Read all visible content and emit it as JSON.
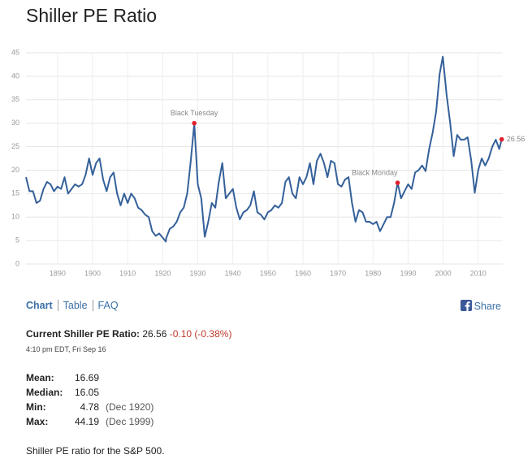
{
  "header": {
    "title": "Shiller PE Ratio"
  },
  "chart_data": {
    "type": "line",
    "x": [
      1881,
      1882,
      1883,
      1884,
      1885,
      1886,
      1887,
      1888,
      1889,
      1890,
      1891,
      1892,
      1893,
      1894,
      1895,
      1896,
      1897,
      1898,
      1899,
      1900,
      1901,
      1902,
      1903,
      1904,
      1905,
      1906,
      1907,
      1908,
      1909,
      1910,
      1911,
      1912,
      1913,
      1914,
      1915,
      1916,
      1917,
      1918,
      1919,
      1920.9,
      1921,
      1922,
      1923,
      1924,
      1925,
      1926,
      1927,
      1928,
      1929,
      1930,
      1931,
      1932,
      1933,
      1934,
      1935,
      1936,
      1937,
      1938,
      1939,
      1940,
      1941,
      1942,
      1943,
      1944,
      1945,
      1946,
      1947,
      1948,
      1949,
      1950,
      1951,
      1952,
      1953,
      1954,
      1955,
      1956,
      1957,
      1958,
      1959,
      1960,
      1961,
      1962,
      1963,
      1964,
      1965,
      1966,
      1967,
      1968,
      1969,
      1970,
      1971,
      1972,
      1973,
      1974,
      1975,
      1976,
      1977,
      1978,
      1979,
      1980,
      1981,
      1982,
      1983,
      1984,
      1985,
      1986,
      1987,
      1988,
      1989,
      1990,
      1991,
      1992,
      1993,
      1994,
      1995,
      1996,
      1997,
      1998,
      1999,
      1999.9,
      2001,
      2002,
      2003,
      2004,
      2005,
      2006,
      2007,
      2008,
      2009,
      2010,
      2011,
      2012,
      2013,
      2014,
      2015,
      2016,
      2016.7
    ],
    "values": [
      18.5,
      15.5,
      15.5,
      13,
      13.5,
      16,
      17.5,
      17,
      15.5,
      16.5,
      16,
      18.5,
      15,
      16,
      17,
      16.5,
      17,
      19,
      22.5,
      19,
      21.5,
      22.5,
      18,
      15.5,
      18.5,
      19.5,
      15,
      12.5,
      15,
      13,
      15,
      14,
      12,
      11.5,
      10.5,
      10,
      7,
      6,
      6.5,
      4.78,
      5.5,
      7.5,
      8,
      9,
      11,
      12,
      15,
      22,
      30,
      17,
      14,
      5.8,
      9,
      13,
      12,
      17.5,
      21.5,
      14,
      15,
      16,
      12,
      9.5,
      11,
      11.5,
      12.5,
      15.5,
      11,
      10.5,
      9.5,
      11,
      11.5,
      12.5,
      12,
      13,
      17.5,
      18.5,
      15,
      14,
      18.5,
      17,
      18.5,
      21.5,
      17,
      22,
      23.5,
      21.5,
      18.5,
      22,
      21.5,
      17,
      16.5,
      18,
      18.5,
      13,
      9,
      11.5,
      11,
      9,
      9,
      8.5,
      9,
      7,
      8.5,
      10,
      10,
      13,
      17.3,
      14,
      15.5,
      17,
      16,
      19.5,
      20,
      21,
      19.8,
      24.5,
      28,
      32.5,
      40.5,
      44.19,
      36,
      30,
      23,
      27.5,
      26.5,
      26.5,
      27,
      22,
      15.2,
      20,
      22.5,
      21,
      22.5,
      25,
      26.5,
      24.5,
      26.56
    ],
    "color": "#34609a",
    "xlim": [
      1881,
      2017
    ],
    "ylim": [
      0,
      45
    ],
    "xticks": [
      1890,
      1900,
      1910,
      1920,
      1930,
      1940,
      1950,
      1960,
      1970,
      1980,
      1990,
      2000,
      2010
    ],
    "yticks": [
      0,
      5,
      10,
      15,
      20,
      25,
      30,
      35,
      40,
      45
    ],
    "grid": true,
    "annotations": [
      {
        "text": "Black Tuesday",
        "x": 1929,
        "y": 30,
        "color": "#e0202c"
      },
      {
        "text": "Black Monday",
        "x": 1987,
        "y": 17.3,
        "color": "#e0202c"
      },
      {
        "text": "26.56",
        "x": 2016.7,
        "y": 26.56,
        "color": "#e0202c"
      }
    ]
  },
  "tabs": [
    "Chart",
    "Table",
    "FAQ"
  ],
  "share": "Share",
  "current": {
    "label": "Current Shiller PE Ratio:",
    "value": "26.56",
    "change": "-0.10 (-0.38%)",
    "timestamp": "4:10 pm EDT, Fri Sep 16"
  },
  "stats": [
    {
      "label": "Mean:",
      "value": "16.69"
    },
    {
      "label": "Median:",
      "value": "16.05"
    },
    {
      "label": "Min:",
      "value": "4.78",
      "date": "(Dec 1920)"
    },
    {
      "label": "Max:",
      "value": "44.19",
      "date": "(Dec 1999)"
    }
  ],
  "footer": "Shiller PE ratio for the S&P 500."
}
